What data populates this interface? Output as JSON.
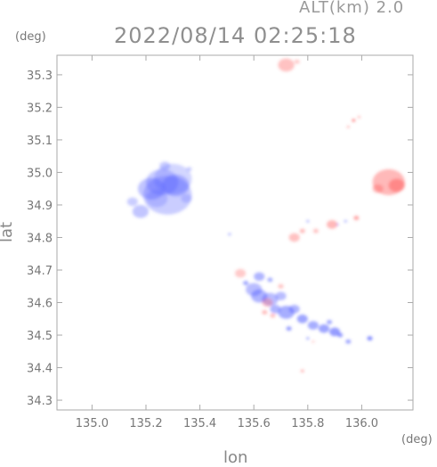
{
  "header": {
    "altitude_label": "ALT(km) 2.0",
    "datetime": "2022/08/14 02:25:18"
  },
  "axes": {
    "y_unit": "(deg)",
    "x_unit": "(deg)",
    "y_title": "lat",
    "x_title": "lon"
  },
  "colors": {
    "frame": "#aaaaaa",
    "approaching": "#5b63ff",
    "receding": "#ff5a5a"
  },
  "chart_data": {
    "type": "scatter",
    "title": "2022/08/14 02:25:18",
    "xlabel": "lon",
    "ylabel": "lat",
    "xlim": [
      134.87,
      136.19
    ],
    "ylim": [
      34.27,
      35.36
    ],
    "xticks": [
      135.0,
      135.2,
      135.4,
      135.6,
      135.8,
      136.0
    ],
    "yticks": [
      34.3,
      34.4,
      34.5,
      34.6,
      34.7,
      34.8,
      34.9,
      35.0,
      35.1,
      35.2,
      35.3
    ],
    "xtick_labels": [
      "135.0",
      "135.2",
      "135.4",
      "135.6",
      "135.8",
      "136.0"
    ],
    "ytick_labels": [
      "34.3",
      "34.4",
      "34.5",
      "34.6",
      "34.7",
      "34.8",
      "34.9",
      "35.0",
      "35.1",
      "35.2",
      "35.3"
    ],
    "grid": false,
    "series": [
      {
        "color": "#4f5bff",
        "points": [
          [
            135.26,
            34.97,
            0.06,
            0.3
          ],
          [
            135.3,
            34.98,
            0.07,
            0.25
          ],
          [
            135.22,
            34.95,
            0.05,
            0.35
          ],
          [
            135.28,
            34.93,
            0.09,
            0.3
          ],
          [
            135.24,
            34.92,
            0.04,
            0.25
          ],
          [
            135.31,
            34.96,
            0.05,
            0.35
          ],
          [
            135.27,
            35.02,
            0.02,
            0.3
          ],
          [
            135.18,
            34.88,
            0.03,
            0.35
          ],
          [
            135.15,
            34.91,
            0.02,
            0.3
          ],
          [
            135.35,
            34.92,
            0.02,
            0.25
          ],
          [
            135.36,
            35.01,
            0.01,
            0.3
          ],
          [
            135.51,
            34.81,
            0.004,
            0.55
          ],
          [
            135.6,
            34.64,
            0.03,
            0.4
          ],
          [
            135.62,
            34.62,
            0.03,
            0.45
          ],
          [
            135.57,
            34.66,
            0.01,
            0.55
          ],
          [
            135.66,
            34.61,
            0.03,
            0.4
          ],
          [
            135.68,
            34.58,
            0.02,
            0.45
          ],
          [
            135.72,
            34.57,
            0.03,
            0.5
          ],
          [
            135.75,
            34.58,
            0.02,
            0.45
          ],
          [
            135.78,
            34.55,
            0.02,
            0.55
          ],
          [
            135.82,
            34.53,
            0.02,
            0.5
          ],
          [
            135.86,
            34.52,
            0.02,
            0.55
          ],
          [
            135.9,
            34.51,
            0.02,
            0.6
          ],
          [
            135.88,
            34.54,
            0.01,
            0.55
          ],
          [
            135.92,
            34.5,
            0.01,
            0.6
          ],
          [
            135.95,
            34.48,
            0.01,
            0.55
          ],
          [
            136.03,
            34.49,
            0.01,
            0.7
          ],
          [
            135.62,
            34.68,
            0.02,
            0.45
          ],
          [
            135.7,
            34.62,
            0.02,
            0.4
          ],
          [
            135.73,
            34.52,
            0.01,
            0.6
          ],
          [
            135.8,
            34.49,
            0.004,
            0.7
          ],
          [
            135.66,
            34.67,
            0.01,
            0.5
          ],
          [
            135.8,
            34.85,
            0.005,
            0.55
          ],
          [
            135.94,
            34.85,
            0.004,
            0.55
          ],
          [
            135.91,
            34.84,
            0.003,
            0.45
          ]
        ]
      },
      {
        "color": "#ff5050",
        "points": [
          [
            135.72,
            35.33,
            0.03,
            0.35
          ],
          [
            135.76,
            35.34,
            0.01,
            0.3
          ],
          [
            135.97,
            35.16,
            0.006,
            0.8
          ],
          [
            135.95,
            35.14,
            0.004,
            0.45
          ],
          [
            135.99,
            35.17,
            0.003,
            0.45
          ],
          [
            136.1,
            34.97,
            0.06,
            0.4
          ],
          [
            136.13,
            34.96,
            0.03,
            0.45
          ],
          [
            136.06,
            34.95,
            0.02,
            0.35
          ],
          [
            135.98,
            34.86,
            0.01,
            0.5
          ],
          [
            135.89,
            34.84,
            0.02,
            0.4
          ],
          [
            135.83,
            34.82,
            0.01,
            0.35
          ],
          [
            135.78,
            34.82,
            0.01,
            0.4
          ],
          [
            135.75,
            34.8,
            0.02,
            0.35
          ],
          [
            135.65,
            34.6,
            0.02,
            0.3
          ],
          [
            135.64,
            34.57,
            0.01,
            0.4
          ],
          [
            135.7,
            34.65,
            0.01,
            0.35
          ],
          [
            135.67,
            34.56,
            0.01,
            0.35
          ],
          [
            135.55,
            34.69,
            0.02,
            0.3
          ],
          [
            135.78,
            34.39,
            0.006,
            0.5
          ],
          [
            135.82,
            34.48,
            0.004,
            0.3
          ]
        ]
      }
    ]
  }
}
